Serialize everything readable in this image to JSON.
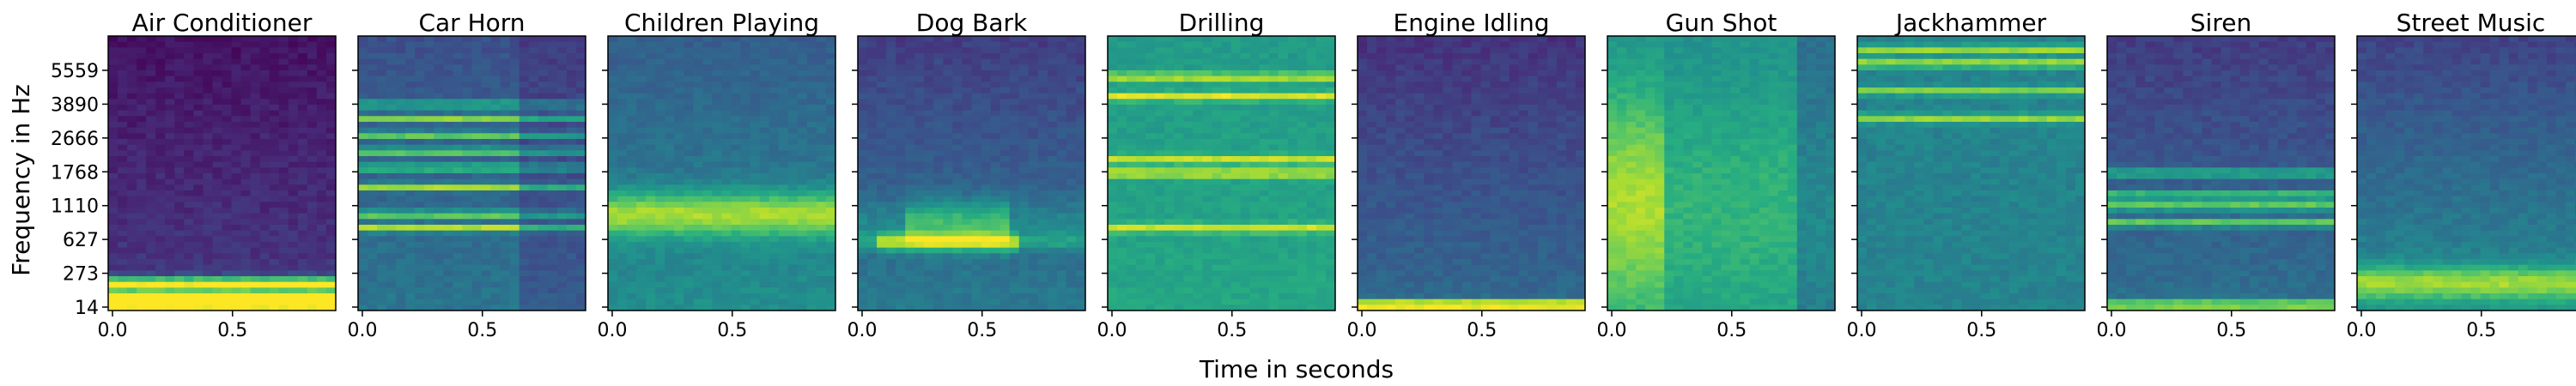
{
  "figure": {
    "ylabel": "Frequency in Hz",
    "xlabel": "Time in seconds"
  },
  "chart_data": {
    "type": "heatmap",
    "colormap": "viridis",
    "x_ticks": [
      "0.0",
      "0.5"
    ],
    "x_tick_values": [
      0.0,
      0.5
    ],
    "xlim": [
      0.0,
      0.93
    ],
    "y_ticks": [
      "14",
      "273",
      "627",
      "1110",
      "1768",
      "2666",
      "3890",
      "5559"
    ],
    "panels": [
      {
        "title": "Air Conditioner",
        "features": [
          {
            "y": 0.02,
            "w": 0.02,
            "a": 0.9
          },
          {
            "y": 0.05,
            "w": 0.025,
            "a": 0.95
          },
          {
            "y": 0.1,
            "w": 0.02,
            "a": 0.85
          }
        ],
        "base": 0.18,
        "base_top": 0.05,
        "boundaries": []
      },
      {
        "title": "Car Horn",
        "features": [
          {
            "y": 0.3,
            "w": 0.012,
            "a": 0.55
          },
          {
            "y": 0.35,
            "w": 0.012,
            "a": 0.5
          },
          {
            "y": 0.45,
            "w": 0.012,
            "a": 0.55
          },
          {
            "y": 0.52,
            "w": 0.012,
            "a": 0.5
          },
          {
            "y": 0.58,
            "w": 0.012,
            "a": 0.55
          },
          {
            "y": 0.64,
            "w": 0.012,
            "a": 0.5
          },
          {
            "y": 0.7,
            "w": 0.012,
            "a": 0.55
          },
          {
            "y": 0.75,
            "w": 0.012,
            "a": 0.45
          }
        ],
        "base": 0.4,
        "base_top": 0.25,
        "boundaries": [
          0.7
        ]
      },
      {
        "title": "Children Playing",
        "features": [
          {
            "y": 0.35,
            "w": 0.08,
            "a": 0.45
          }
        ],
        "base": 0.5,
        "base_top": 0.3,
        "boundaries": []
      },
      {
        "title": "Dog Bark",
        "features": [
          {
            "y": 0.25,
            "w": 0.03,
            "a": 0.5,
            "tmin": 0.1,
            "tmax": 0.7
          },
          {
            "y": 0.32,
            "w": 0.08,
            "a": 0.35,
            "tmin": 0.2,
            "tmax": 0.65
          }
        ],
        "base": 0.42,
        "base_top": 0.18,
        "boundaries": []
      },
      {
        "title": "Drilling",
        "features": [
          {
            "y": 0.3,
            "w": 0.015,
            "a": 0.35
          },
          {
            "y": 0.5,
            "w": 0.015,
            "a": 0.4
          },
          {
            "y": 0.55,
            "w": 0.015,
            "a": 0.35
          },
          {
            "y": 0.78,
            "w": 0.015,
            "a": 0.4
          },
          {
            "y": 0.85,
            "w": 0.015,
            "a": 0.35
          }
        ],
        "base": 0.6,
        "base_top": 0.55,
        "boundaries": []
      },
      {
        "title": "Engine Idling",
        "features": [
          {
            "y": 0.02,
            "w": 0.015,
            "a": 0.9
          }
        ],
        "base": 0.35,
        "base_top": 0.15,
        "boundaries": []
      },
      {
        "title": "Gun Shot",
        "features": [
          {
            "y": 0.4,
            "w": 0.4,
            "a": 0.35,
            "tmin": 0.0,
            "tmax": 0.25
          }
        ],
        "base": 0.55,
        "base_top": 0.5,
        "boundaries": [
          0.85
        ]
      },
      {
        "title": "Jackhammer",
        "features": [
          {
            "y": 0.7,
            "w": 0.015,
            "a": 0.4
          },
          {
            "y": 0.8,
            "w": 0.015,
            "a": 0.35
          },
          {
            "y": 0.9,
            "w": 0.015,
            "a": 0.45
          },
          {
            "y": 0.95,
            "w": 0.015,
            "a": 0.4
          }
        ],
        "base": 0.45,
        "base_top": 0.45,
        "boundaries": []
      },
      {
        "title": "Siren",
        "features": [
          {
            "y": 0.02,
            "w": 0.015,
            "a": 0.6
          },
          {
            "y": 0.32,
            "w": 0.015,
            "a": 0.45
          },
          {
            "y": 0.38,
            "w": 0.015,
            "a": 0.5
          },
          {
            "y": 0.42,
            "w": 0.015,
            "a": 0.45
          },
          {
            "y": 0.5,
            "w": 0.015,
            "a": 0.4
          }
        ],
        "base": 0.38,
        "base_top": 0.18,
        "boundaries": []
      },
      {
        "title": "Street Music",
        "features": [
          {
            "y": 0.1,
            "w": 0.06,
            "a": 0.4
          }
        ],
        "base": 0.5,
        "base_top": 0.2,
        "boundaries": []
      }
    ]
  }
}
